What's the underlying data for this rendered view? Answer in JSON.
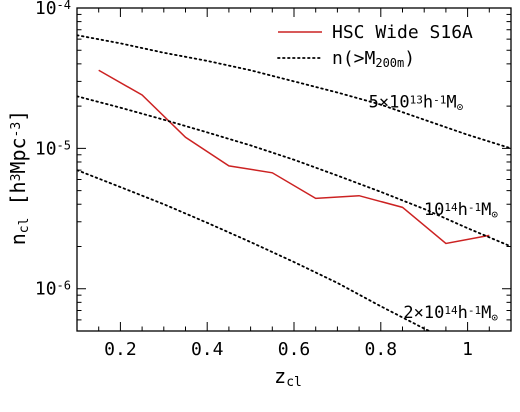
{
  "chart_data": {
    "type": "line",
    "xlabel": "z",
    "xlabel_sub": "cl",
    "ylabel": "n",
    "ylabel_sub": "cl",
    "ylabel_units_parts": [
      {
        "t": " [h"
      },
      {
        "t": "3",
        "s": "sup"
      },
      {
        "t": "Mpc"
      },
      {
        "t": "-3",
        "s": "sup"
      },
      {
        "t": "]"
      }
    ],
    "xlim": [
      0.1,
      1.1
    ],
    "ylim": [
      5e-07,
      0.0001
    ],
    "yscale": "log",
    "x_ticks": [
      0.2,
      0.4,
      0.6,
      0.8,
      1.0
    ],
    "x_tick_labels": [
      "0.2",
      "0.4",
      "0.6",
      "0.8",
      "1"
    ],
    "y_ticks": [
      1e-06,
      1e-05,
      0.0001
    ],
    "y_tick_labels": [
      {
        "base": "10",
        "exp": "-6"
      },
      {
        "base": "10",
        "exp": "-5"
      },
      {
        "base": "10",
        "exp": "-4"
      }
    ],
    "legend_placement": "top-right",
    "legend": [
      {
        "label": "HSC Wide S16A",
        "style": "solid",
        "color": "#cc2222"
      },
      {
        "label_parts": [
          {
            "t": "n(>M"
          },
          {
            "t": "200m",
            "s": "sub"
          },
          {
            "t": ")"
          }
        ],
        "style": "dotted",
        "color": "#000000"
      }
    ],
    "series": [
      {
        "name": "HSC Wide S16A",
        "style": "solid",
        "color": "#cc2222",
        "x": [
          0.15,
          0.25,
          0.35,
          0.45,
          0.55,
          0.65,
          0.75,
          0.85,
          0.95,
          1.05
        ],
        "y": [
          3.6e-05,
          2.4e-05,
          1.2e-05,
          7.5e-06,
          6.7e-06,
          4.4e-06,
          4.6e-06,
          3.8e-06,
          2.1e-06,
          2.4e-06
        ]
      },
      {
        "style": "dotted",
        "color": "#000000",
        "annotation_parts": [
          {
            "t": "5×10"
          },
          {
            "t": "13",
            "s": "sup"
          },
          {
            "t": "h"
          },
          {
            "t": "-1",
            "s": "sup"
          },
          {
            "t": "M"
          },
          {
            "t": "⊙",
            "s": "sub"
          }
        ],
        "x": [
          0.1,
          0.2,
          0.3,
          0.4,
          0.5,
          0.6,
          0.7,
          0.8,
          0.9,
          1.0,
          1.1
        ],
        "y": [
          6.4e-05,
          5.6e-05,
          4.8e-05,
          4.2e-05,
          3.6e-05,
          3e-05,
          2.5e-05,
          2.05e-05,
          1.6e-05,
          1.25e-05,
          1e-05
        ]
      },
      {
        "style": "dotted",
        "color": "#000000",
        "annotation_parts": [
          {
            "t": "10"
          },
          {
            "t": "14",
            "s": "sup"
          },
          {
            "t": "h"
          },
          {
            "t": "-1",
            "s": "sup"
          },
          {
            "t": "M"
          },
          {
            "t": "⊙",
            "s": "sub"
          }
        ],
        "x": [
          0.1,
          0.2,
          0.3,
          0.4,
          0.5,
          0.6,
          0.7,
          0.8,
          0.9,
          1.0,
          1.1
        ],
        "y": [
          2.35e-05,
          1.95e-05,
          1.6e-05,
          1.3e-05,
          1.05e-05,
          8.3e-06,
          6.4e-06,
          4.9e-06,
          3.7e-06,
          2.7e-06,
          2e-06
        ]
      },
      {
        "style": "dotted",
        "color": "#000000",
        "annotation_parts": [
          {
            "t": "2×10"
          },
          {
            "t": "14",
            "s": "sup"
          },
          {
            "t": "h"
          },
          {
            "t": "-1",
            "s": "sup"
          },
          {
            "t": "M"
          },
          {
            "t": "⊙",
            "s": "sub"
          }
        ],
        "x": [
          0.1,
          0.2,
          0.3,
          0.4,
          0.5,
          0.6,
          0.7,
          0.8,
          0.9,
          0.95
        ],
        "y": [
          7e-06,
          5.3e-06,
          4e-06,
          2.95e-06,
          2.15e-06,
          1.55e-06,
          1.1e-06,
          7.5e-07,
          5.2e-07,
          4.4e-07
        ]
      }
    ]
  }
}
